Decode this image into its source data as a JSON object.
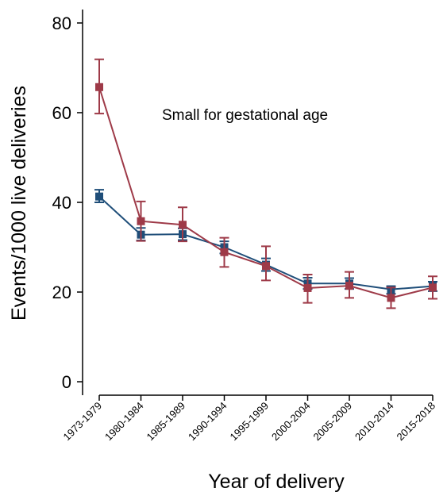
{
  "chart_data": {
    "type": "line",
    "annotation": "Small for gestational age",
    "x_label": "Year of delivery",
    "y_label": "Events/1000 live deliveries",
    "categories": [
      "1973-1979",
      "1980-1984",
      "1985-1989",
      "1990-1994",
      "1995-1999",
      "2000-2004",
      "2005-2009",
      "2010-2014",
      "2015-2018"
    ],
    "ylim": [
      -3,
      83
    ],
    "yticks": [
      0,
      20,
      40,
      60,
      80
    ],
    "series": [
      {
        "color": "#1f4e79",
        "values": [
          41.3,
          32.8,
          32.9,
          30.0,
          26.1,
          21.9,
          21.9,
          20.6,
          21.3
        ],
        "lower": [
          40.0,
          31.5,
          31.6,
          28.6,
          24.7,
          20.7,
          20.7,
          19.6,
          20.2
        ],
        "upper": [
          42.8,
          34.3,
          34.2,
          31.3,
          27.5,
          23.2,
          23.1,
          21.3,
          22.3
        ]
      },
      {
        "color": "#9e3a48",
        "values": [
          65.7,
          35.8,
          35.0,
          28.9,
          25.8,
          20.9,
          21.4,
          18.7,
          21.0
        ],
        "lower": [
          59.8,
          31.4,
          31.3,
          25.6,
          22.6,
          17.6,
          18.7,
          16.4,
          18.5
        ],
        "upper": [
          71.9,
          40.2,
          38.9,
          32.1,
          30.2,
          23.9,
          24.5,
          21.0,
          23.5
        ]
      }
    ]
  }
}
